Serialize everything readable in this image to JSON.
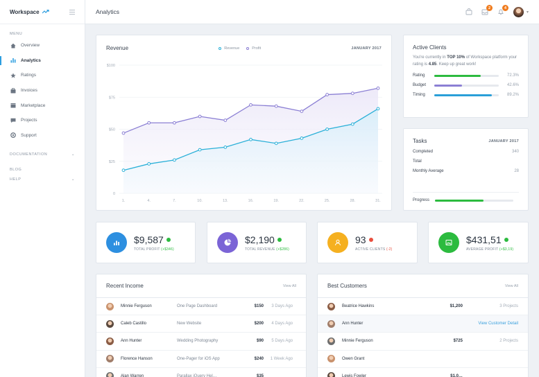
{
  "sidebar": {
    "brand": "Workspace",
    "menu_label": "MENU",
    "items": [
      {
        "label": "Overview",
        "icon": "home-icon"
      },
      {
        "label": "Analytics",
        "icon": "bar-chart-icon",
        "active": true
      },
      {
        "label": "Ratings",
        "icon": "star-icon"
      },
      {
        "label": "Invoices",
        "icon": "invoice-icon"
      },
      {
        "label": "Marketplace",
        "icon": "store-icon"
      },
      {
        "label": "Projects",
        "icon": "chat-icon"
      },
      {
        "label": "Support",
        "icon": "lifebuoy-icon"
      }
    ],
    "documentation_label": "DOCUMENTATION",
    "blog_label": "BLOG",
    "help_label": "HELP"
  },
  "topbar": {
    "title": "Analytics",
    "notifications": [
      {
        "icon": "bag-icon",
        "count": ""
      },
      {
        "icon": "inbox-icon",
        "count": "2"
      },
      {
        "icon": "bell-icon",
        "count": "4"
      }
    ]
  },
  "revenue": {
    "title": "Revenue",
    "legend": [
      "Revenue",
      "Profit"
    ],
    "date": "JANUARY 2017",
    "colors": {
      "revenue": "#2ab0d8",
      "profit": "#8b7fd4"
    }
  },
  "chart_data": {
    "type": "line",
    "x": [
      "1",
      "4",
      "7",
      "10",
      "13",
      "16",
      "19",
      "22",
      "25",
      "28",
      "31"
    ],
    "x_tick_labels": [
      "1.",
      "4.",
      "7.",
      "10.",
      "13.",
      "16.",
      "19.",
      "22.",
      "25.",
      "28.",
      "31."
    ],
    "ylim": [
      0,
      100
    ],
    "y_ticks": [
      "$100",
      "$75",
      "$50",
      "$25",
      "0"
    ],
    "series": [
      {
        "name": "Revenue",
        "values": [
          18,
          23,
          26,
          34,
          36,
          42,
          39,
          43,
          50,
          54,
          66
        ]
      },
      {
        "name": "Profit",
        "values": [
          47,
          55,
          55,
          60,
          57,
          69,
          68,
          64,
          77,
          78,
          82
        ]
      }
    ],
    "grid": true
  },
  "active_clients": {
    "title": "Active Clients",
    "text_pre": "You're currently in",
    "text_bold": "TOP 10%",
    "text_mid": "of Workspace platform your rating is",
    "text_rating": "4.85",
    "text_post": ". Keep up great work!",
    "metrics": [
      {
        "label": "Rating",
        "value": "72.3%",
        "pct": 72.3,
        "color": "#2cbb3f"
      },
      {
        "label": "Budget",
        "value": "42.6%",
        "pct": 42.6,
        "color": "#8b7fd4"
      },
      {
        "label": "Timing",
        "value": "89.2%",
        "pct": 89.2,
        "color": "#2a9fd8"
      }
    ]
  },
  "tasks": {
    "title": "Tasks",
    "date": "JANUARY 2017",
    "rows": [
      {
        "label": "Completed",
        "value": "340"
      },
      {
        "label": "Total",
        "value": ""
      },
      {
        "label": "Monthly Average",
        "value": "28"
      }
    ],
    "progress_label": "Progress",
    "progress_value": "",
    "progress_pct": 62
  },
  "stats": [
    {
      "value": "$9,587",
      "label": "TOTAL PROFIT",
      "change": "(+$346)",
      "trend": "up",
      "icon": "bar-chart-icon",
      "color": "#2d8fe0"
    },
    {
      "value": "$2,190",
      "label": "TOTAL REVENUE",
      "change": "(+$286)",
      "trend": "up",
      "icon": "pie-chart-icon",
      "color": "#7b64d6"
    },
    {
      "value": "93",
      "label": "ACTIVE CLIENTS",
      "change": "(-2)",
      "trend": "down",
      "icon": "user-icon",
      "color": "#f5b020"
    },
    {
      "value": "$431,51",
      "label": "AVERAGE PROFIT",
      "change": "(+$3,19)",
      "trend": "up",
      "icon": "image-icon",
      "color": "#2cbb3f"
    }
  ],
  "recent_income": {
    "title": "Recent Income",
    "view_all": "View All",
    "rows": [
      {
        "name": "Minnie Ferguson",
        "desc": "One Page Dashboard",
        "amount": "$150",
        "when": "3 Days Ago"
      },
      {
        "name": "Caleb Castillo",
        "desc": "New Website",
        "amount": "$200",
        "when": "4 Days Ago"
      },
      {
        "name": "Ann Hunter",
        "desc": "Wedding Photography",
        "amount": "$90",
        "when": "5 Days Ago"
      },
      {
        "name": "Florence Hanson",
        "desc": "One-Pager for iOS App",
        "amount": "$240",
        "when": "1 Week Ago"
      },
      {
        "name": "Alan Warren",
        "desc": "Parallax jQuery Hel…",
        "amount": "$35",
        "when": ""
      }
    ]
  },
  "best_customers": {
    "title": "Best Customers",
    "view_all": "View All",
    "rows": [
      {
        "name": "Beatrice Hawkins",
        "amount": "$1,200",
        "meta": "3 Projects"
      },
      {
        "name": "Ann Hunter",
        "amount": "",
        "meta": "View Customer Detail"
      },
      {
        "name": "Minnie Ferguson",
        "amount": "$725",
        "meta": "2 Projects"
      },
      {
        "name": "Owen Grant",
        "amount": "",
        "meta": ""
      },
      {
        "name": "Lewis Fowler",
        "amount": "$1,0…",
        "meta": ""
      }
    ]
  }
}
